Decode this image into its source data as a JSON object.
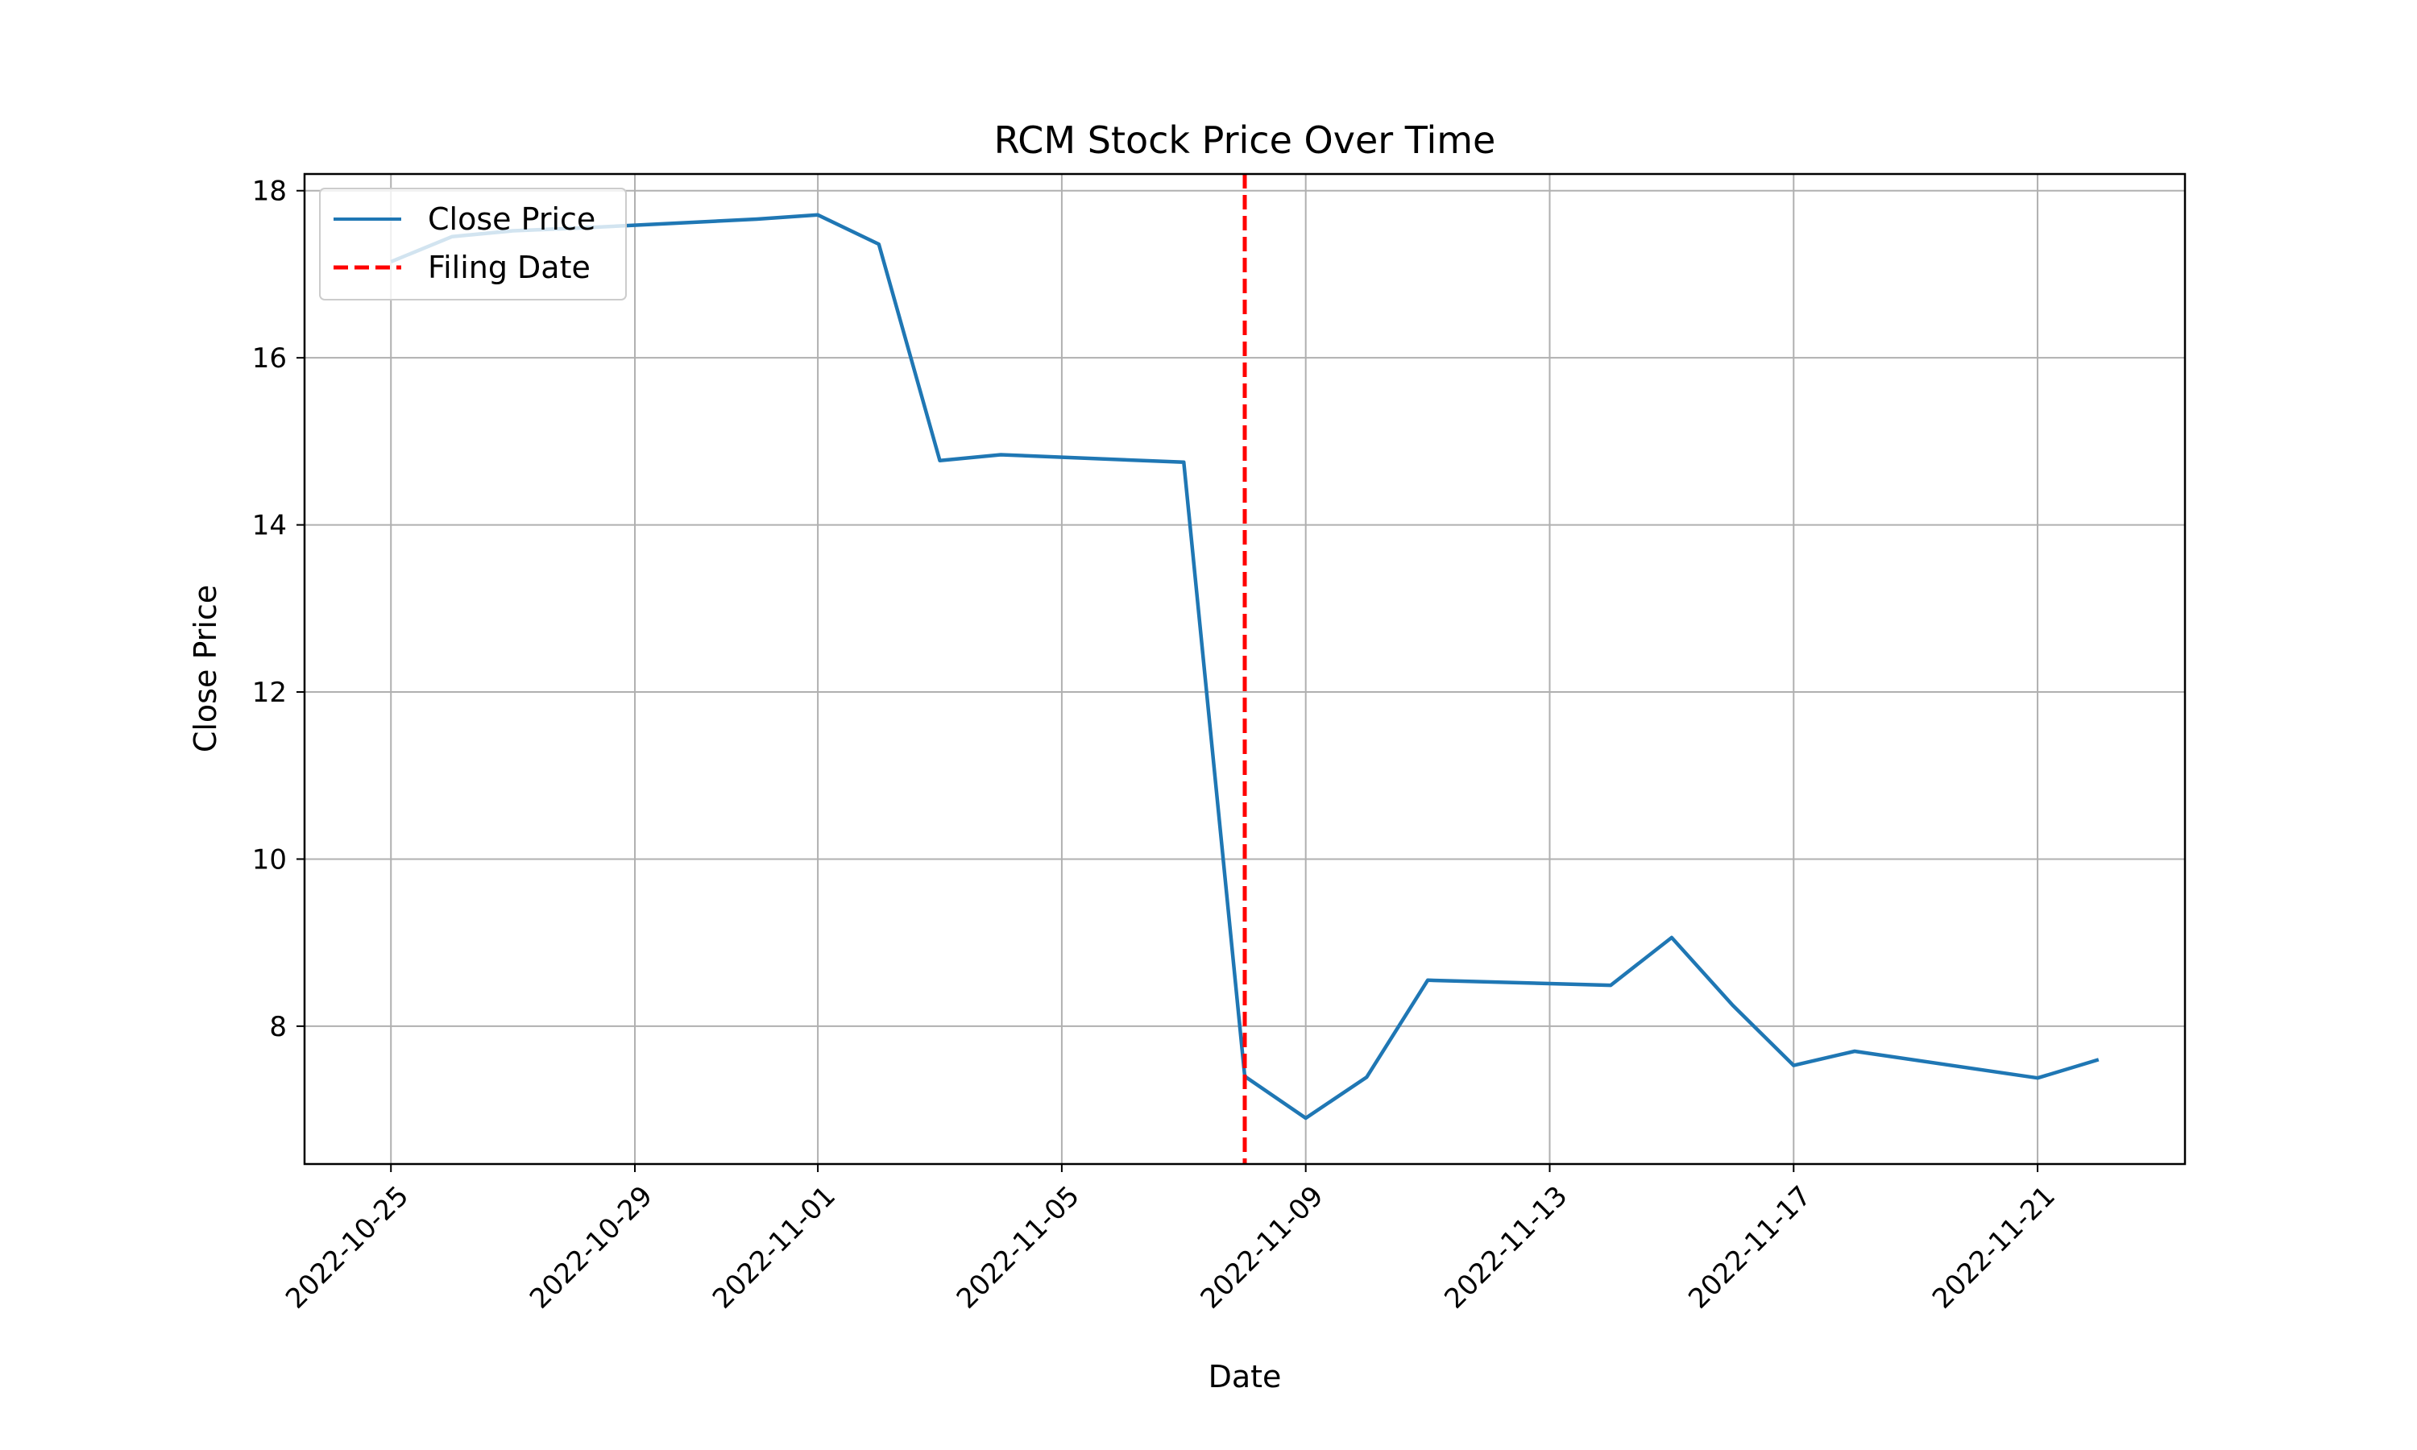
{
  "chart_data": {
    "type": "line",
    "title": "RCM Stock Price Over Time",
    "xlabel": "Date",
    "ylabel": "Close Price",
    "xlim": [
      "2022-10-23T14:00",
      "2022-11-23T10:00"
    ],
    "ylim": [
      6.35,
      18.2
    ],
    "x_ticks": [
      "2022-10-25",
      "2022-10-29",
      "2022-11-01",
      "2022-11-05",
      "2022-11-09",
      "2022-11-13",
      "2022-11-17",
      "2022-11-21"
    ],
    "y_ticks": [
      8,
      10,
      12,
      14,
      16,
      18
    ],
    "grid": true,
    "legend_position": "top-left",
    "series": [
      {
        "name": "Close Price",
        "color": "#1f77b4",
        "style": "solid",
        "x": [
          "2022-10-25",
          "2022-10-26",
          "2022-10-27",
          "2022-10-28",
          "2022-10-31",
          "2022-11-01",
          "2022-11-02",
          "2022-11-03",
          "2022-11-04",
          "2022-11-07",
          "2022-11-08",
          "2022-11-09",
          "2022-11-10",
          "2022-11-11",
          "2022-11-14",
          "2022-11-15",
          "2022-11-16",
          "2022-11-17",
          "2022-11-18",
          "2022-11-21",
          "2022-11-22"
        ],
        "y": [
          17.15,
          17.45,
          17.52,
          17.55,
          17.66,
          17.71,
          17.36,
          14.77,
          14.84,
          14.75,
          7.4,
          6.9,
          7.39,
          8.55,
          8.49,
          9.06,
          8.25,
          7.53,
          7.7,
          7.38,
          7.6
        ]
      }
    ],
    "reference_lines": [
      {
        "name": "Filing Date",
        "color": "#ff0000",
        "style": "dashed",
        "x": "2022-11-08"
      }
    ]
  }
}
